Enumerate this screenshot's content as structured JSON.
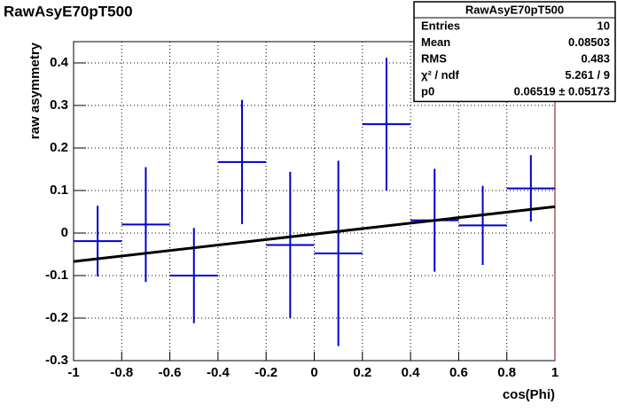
{
  "chart_data": {
    "type": "errorbar",
    "title": "RawAsyE70pT500",
    "x_label": "cos(Phi)",
    "y_label": "raw asymmetry",
    "x": [
      -0.9,
      -0.7,
      -0.5,
      -0.3,
      -0.1,
      0.1,
      0.3,
      0.5,
      0.7,
      0.9
    ],
    "xerr": 0.1,
    "values": [
      -0.019,
      0.02,
      -0.1,
      0.167,
      -0.028,
      -0.048,
      0.256,
      0.03,
      0.018,
      0.105
    ],
    "errors": [
      0.083,
      0.135,
      0.112,
      0.146,
      0.172,
      0.218,
      0.156,
      0.121,
      0.093,
      0.078
    ],
    "color": "#0000cc",
    "fit": {
      "x": [
        -1,
        1
      ],
      "values": [
        -0.067,
        0.062
      ],
      "color": "#000000"
    },
    "xlim": [
      -1,
      1
    ],
    "ylim": [
      -0.3,
      0.45
    ],
    "xticks": [
      -1,
      -0.8,
      -0.6,
      -0.4,
      -0.2,
      0,
      0.2,
      0.4,
      0.6,
      0.8,
      1
    ],
    "yticks": [
      -0.3,
      -0.2,
      -0.1,
      0,
      0.1,
      0.2,
      0.3,
      0.4
    ],
    "grid": true,
    "stats": {
      "title": "RawAsyE70pT500",
      "rows": [
        [
          "Entries",
          "10"
        ],
        [
          "Mean",
          "0.08503"
        ],
        [
          "RMS",
          "0.483"
        ],
        [
          "χ² / ndf",
          "5.261 / 9"
        ],
        [
          "p0",
          "0.06519 ± 0.05173"
        ]
      ]
    }
  }
}
